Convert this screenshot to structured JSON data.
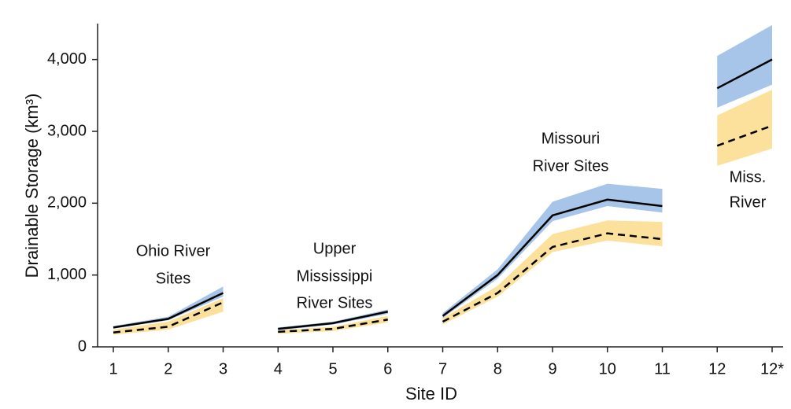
{
  "chart_data": {
    "type": "line",
    "x_label": "Site ID",
    "y_label": "Drainable Storage (km³)",
    "ylim": [
      0,
      4500
    ],
    "yticks": [
      0,
      {
        "value": 1000,
        "label": "1,000"
      },
      {
        "value": 2000,
        "label": "2,000"
      },
      {
        "value": 3000,
        "label": "3,000"
      },
      {
        "value": 4000,
        "label": "4,000"
      }
    ],
    "groups": [
      {
        "label": [
          "Ohio River",
          "Sites"
        ],
        "categories": [
          "1",
          "2",
          "3"
        ],
        "bands": [
          {
            "color": "#a7c5e8",
            "upper": [
              290,
              420,
              840
            ],
            "lower": [
              255,
              370,
              700
            ]
          },
          {
            "color": "#fbe19b",
            "upper": [
              240,
              350,
              680
            ],
            "lower": [
              170,
              240,
              490
            ]
          }
        ],
        "series": [
          {
            "color": "#000000",
            "style": "solid",
            "values": [
              270,
              390,
              750
            ]
          },
          {
            "color": "#000000",
            "style": "dashed",
            "values": [
              200,
              280,
              620
            ]
          }
        ]
      },
      {
        "label": [
          "Upper",
          "Mississippi",
          "River Sites"
        ],
        "categories": [
          "4",
          "5",
          "6"
        ],
        "bands": [
          {
            "color": "#a7c5e8",
            "upper": [
              270,
              350,
              520
            ],
            "lower": [
              230,
              310,
              460
            ]
          },
          {
            "color": "#fbe19b",
            "upper": [
              230,
              280,
              430
            ],
            "lower": [
              180,
              220,
              340
            ]
          }
        ],
        "series": [
          {
            "color": "#000000",
            "style": "solid",
            "values": [
              250,
              330,
              490
            ]
          },
          {
            "color": "#000000",
            "style": "dashed",
            "values": [
              210,
              250,
              380
            ]
          }
        ]
      },
      {
        "label": [
          "Missouri",
          "River Sites"
        ],
        "categories": [
          "7",
          "8",
          "9",
          "10",
          "11"
        ],
        "bands": [
          {
            "color": "#a7c5e8",
            "upper": [
              470,
              1080,
              2020,
              2270,
              2200
            ],
            "lower": [
              400,
              950,
              1750,
              1960,
              1870
            ]
          },
          {
            "color": "#fbe19b",
            "upper": [
              400,
              850,
              1570,
              1760,
              1740
            ],
            "lower": [
              310,
              700,
              1320,
              1480,
              1400
            ]
          }
        ],
        "series": [
          {
            "color": "#000000",
            "style": "solid",
            "values": [
              430,
              1000,
              1830,
              2050,
              1960
            ]
          },
          {
            "color": "#000000",
            "style": "dashed",
            "values": [
              350,
              750,
              1390,
              1580,
              1500
            ]
          }
        ]
      },
      {
        "label": [
          "Miss.",
          "River"
        ],
        "categories": [
          "12",
          "12*"
        ],
        "bands": [
          {
            "color": "#a7c5e8",
            "upper": [
              4050,
              4480
            ],
            "lower": [
              3330,
              3650
            ]
          },
          {
            "color": "#fbe19b",
            "upper": [
              3220,
              3580
            ],
            "lower": [
              2520,
              2760
            ]
          }
        ],
        "series": [
          {
            "color": "#000000",
            "style": "solid",
            "values": [
              3600,
              4000
            ]
          },
          {
            "color": "#000000",
            "style": "dashed",
            "values": [
              2800,
              3080
            ]
          }
        ]
      }
    ]
  }
}
